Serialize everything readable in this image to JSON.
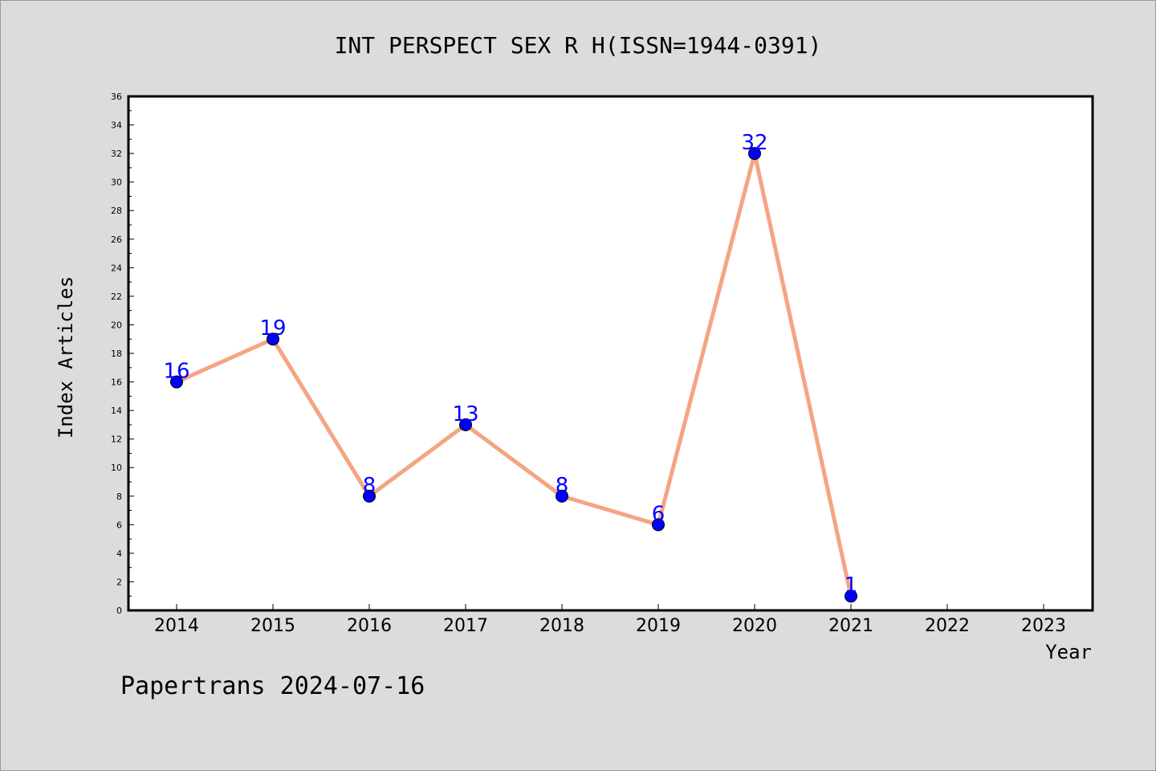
{
  "chart_data": {
    "type": "line",
    "title": "INT PERSPECT SEX R H(ISSN=1944-0391)",
    "xlabel": "Year",
    "ylabel": "Index Articles",
    "categories": [
      "2014",
      "2015",
      "2016",
      "2017",
      "2018",
      "2019",
      "2020",
      "2021",
      "2022",
      "2023"
    ],
    "series": [
      {
        "x": [
          "2014",
          "2015",
          "2016",
          "2017",
          "2018",
          "2019",
          "2020",
          "2021"
        ],
        "values": [
          16,
          19,
          8,
          13,
          8,
          6,
          32,
          1
        ]
      }
    ],
    "ylim": [
      0,
      36
    ],
    "yticks": [
      0,
      2,
      4,
      6,
      8,
      10,
      12,
      14,
      16,
      18,
      20,
      22,
      24,
      26,
      28,
      30,
      32,
      34,
      36
    ],
    "grid": false,
    "data_labels": true,
    "colors": {
      "line": "#f4a582",
      "marker": "#0000ff",
      "data_label": "#0000ff",
      "background": "#dcdcdc",
      "plot_background": "#ffffff"
    }
  },
  "footer": "Papertrans 2024-07-16"
}
